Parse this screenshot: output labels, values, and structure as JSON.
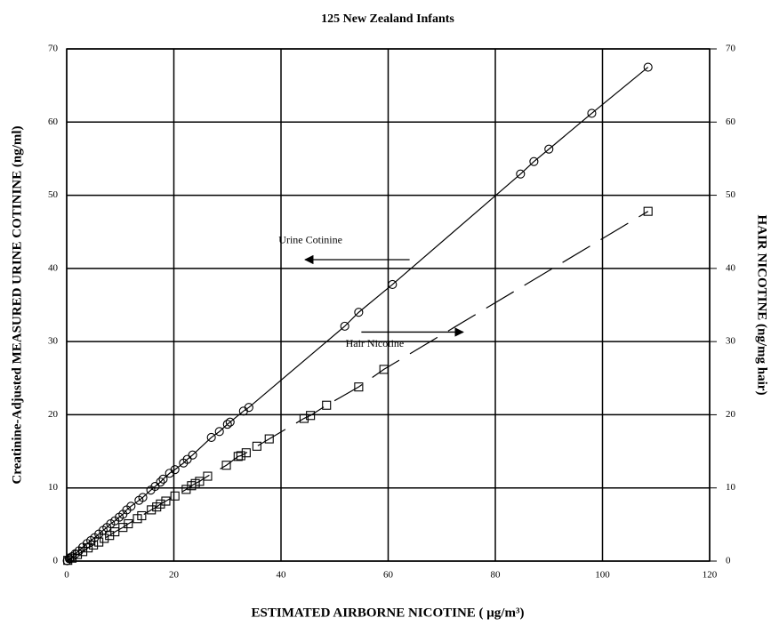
{
  "chart_data": {
    "type": "scatter",
    "title": "125 New Zealand Infants",
    "xlabel": "ESTIMATED AIRBORNE NICOTINE ( μg/m³)",
    "ylabel": "Creatinine-Adjusted MEASURED URINE COTININE (ng/ml)",
    "y2label": "HAIR NICOTINE (ng/mg hair)",
    "xlim": [
      0,
      120
    ],
    "xticks": [
      0,
      20,
      40,
      60,
      80,
      100,
      120
    ],
    "ylim": [
      0,
      70
    ],
    "yticks": [
      0,
      10,
      20,
      30,
      40,
      50,
      60,
      70
    ],
    "y2lim": [
      0,
      70
    ],
    "y2ticks": [
      0,
      10,
      20,
      30,
      40,
      50,
      60,
      70
    ],
    "grid": true,
    "series": [
      {
        "name": "Urine Cotinine",
        "marker": "circle",
        "line": "solid",
        "color": "#000000",
        "x": [
          0.1,
          0.5,
          1,
          1.6,
          2.3,
          3,
          3.8,
          4.5,
          5.2,
          6,
          6.8,
          7.5,
          8.2,
          9,
          9.8,
          10.5,
          11.2,
          12,
          13.5,
          14.2,
          15.7,
          16.5,
          17.5,
          18,
          19.2,
          20.2,
          21.8,
          22.5,
          23.5,
          27,
          28.5,
          30,
          30.5,
          33,
          34,
          51.9,
          54.5,
          60.8,
          84.7,
          87.2,
          90,
          98,
          108.5
        ],
        "values": [
          0.05,
          0.3,
          0.6,
          1,
          1.4,
          1.9,
          2.4,
          2.8,
          3.2,
          3.7,
          4.2,
          4.6,
          5.1,
          5.5,
          6,
          6.4,
          7,
          7.5,
          8.3,
          8.7,
          9.7,
          10.2,
          10.8,
          11.2,
          12,
          12.5,
          13.4,
          13.9,
          14.5,
          16.9,
          17.7,
          18.7,
          19,
          20.5,
          21,
          32.1,
          34,
          37.8,
          52.9,
          54.6,
          56.3,
          61.2,
          67.5
        ]
      },
      {
        "name": "Hair Nicotine",
        "marker": "square",
        "line": "dashed",
        "color": "#000000",
        "axis": "y2",
        "x": [
          0.2,
          1,
          2,
          3,
          4,
          5,
          6,
          7,
          8,
          9,
          10.5,
          11.5,
          13.2,
          14,
          15.8,
          16.8,
          17.5,
          18.5,
          20.2,
          22.3,
          23.3,
          24,
          24.8,
          26.3,
          29.8,
          32,
          32.5,
          33.5,
          35.5,
          37.8,
          44.3,
          45.5,
          48.5,
          54.5,
          59.2,
          108.5
        ],
        "values": [
          0.1,
          0.4,
          0.9,
          1.3,
          1.8,
          2.2,
          2.6,
          3.1,
          3.5,
          4,
          4.6,
          5.1,
          5.8,
          6.2,
          7,
          7.4,
          7.8,
          8.2,
          8.9,
          9.8,
          10.3,
          10.6,
          10.9,
          11.6,
          13.1,
          14.3,
          14.4,
          14.8,
          15.7,
          16.7,
          19.5,
          19.9,
          21.3,
          23.8,
          26.2,
          47.8
        ]
      }
    ]
  }
}
